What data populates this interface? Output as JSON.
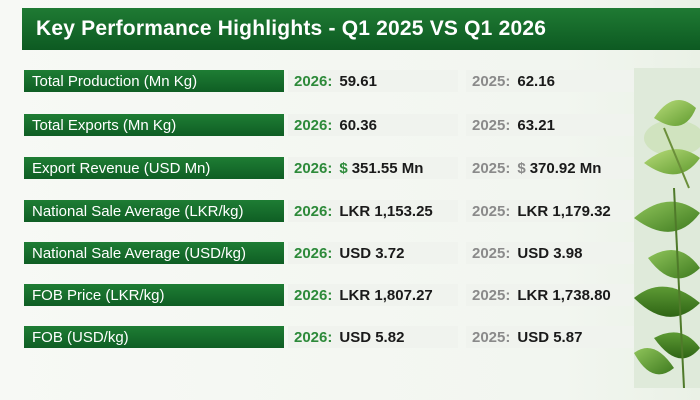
{
  "header": {
    "title": "Key Performance Highlights - Q1 2025 VS Q1 2026"
  },
  "rows": [
    {
      "label": "Total Production (Mn Kg)",
      "y2026": {
        "year": "2026:",
        "prefix": "",
        "value": "59.61"
      },
      "y2025": {
        "year": "2025:",
        "prefix": "",
        "value": "62.16"
      }
    },
    {
      "label": "Total Exports (Mn Kg)",
      "y2026": {
        "year": "2026:",
        "prefix": "",
        "value": "60.36"
      },
      "y2025": {
        "year": "2025:",
        "prefix": "",
        "value": "63.21"
      }
    },
    {
      "label": "Export Revenue (USD Mn)",
      "y2026": {
        "year": "2026:",
        "prefix": "$",
        "value": "351.55 Mn"
      },
      "y2025": {
        "year": "2025:",
        "prefix": "$",
        "value": "370.92 Mn"
      }
    },
    {
      "label": "National Sale Average (LKR/kg)",
      "y2026": {
        "year": "2026:",
        "prefix": "",
        "value": "LKR 1,153.25"
      },
      "y2025": {
        "year": "2025:",
        "prefix": "",
        "value": "LKR 1,179.32"
      }
    },
    {
      "label": "National Sale Average (USD/kg)",
      "y2026": {
        "year": "2026:",
        "prefix": "",
        "value": "USD 3.72"
      },
      "y2025": {
        "year": "2025:",
        "prefix": "",
        "value": "USD 3.98"
      }
    },
    {
      "label": "FOB Price (LKR/kg)",
      "y2026": {
        "year": "2026:",
        "prefix": "",
        "value": "LKR 1,807.27"
      },
      "y2025": {
        "year": "2025:",
        "prefix": "",
        "value": "LKR 1,738.80"
      }
    },
    {
      "label": "FOB (USD/kg)",
      "y2026": {
        "year": "2026:",
        "prefix": "",
        "value": "USD 5.82"
      },
      "y2025": {
        "year": "2025:",
        "prefix": "",
        "value": "USD 5.87"
      }
    }
  ],
  "colors": {
    "header_bg": "#0d5a22",
    "label_bg": "#1e7d34",
    "year_2026": "#2d8a3a",
    "year_2025": "#8a8a8a"
  },
  "decor": {
    "image": "tea-leaves-icon"
  }
}
